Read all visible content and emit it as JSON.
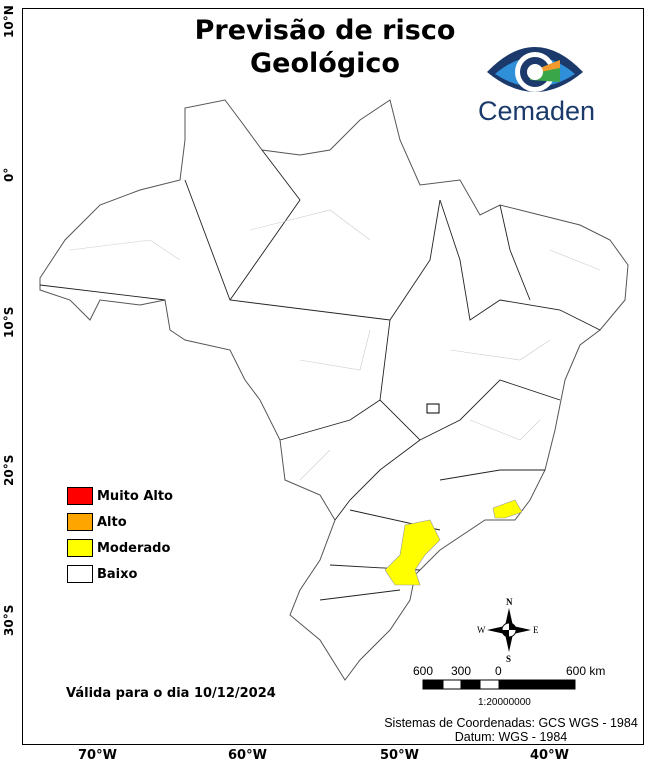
{
  "title": {
    "line1": "Previsão de risco",
    "line2": "Geológico"
  },
  "logo": {
    "text": "Cemaden",
    "colors": [
      "#1b3a6b",
      "#2f8fd8",
      "#f29a2e",
      "#3aa64a"
    ]
  },
  "axes": {
    "lat": [
      "10°N",
      "0°",
      "10°S",
      "20°S",
      "30°S"
    ],
    "lon": [
      "70°W",
      "60°W",
      "50°W",
      "40°W"
    ]
  },
  "legend": [
    {
      "label": "Muito Alto",
      "color": "#ff0000"
    },
    {
      "label": "Alto",
      "color": "#ffa500"
    },
    {
      "label": "Moderado",
      "color": "#ffff00"
    },
    {
      "label": "Baixo",
      "color": "#ffffff"
    }
  ],
  "valid_text": "Válida para o dia 10/12/2024",
  "compass": {
    "n": "N",
    "s": "S",
    "e": "E",
    "w": "W"
  },
  "scale": {
    "labels": [
      "600",
      "300",
      "0",
      "600 km"
    ],
    "ratio": "1:20000000"
  },
  "crs": {
    "line1": "Sistemas de Coordenadas: GCS WGS - 1984",
    "line2": "Datum: WGS - 1984"
  }
}
